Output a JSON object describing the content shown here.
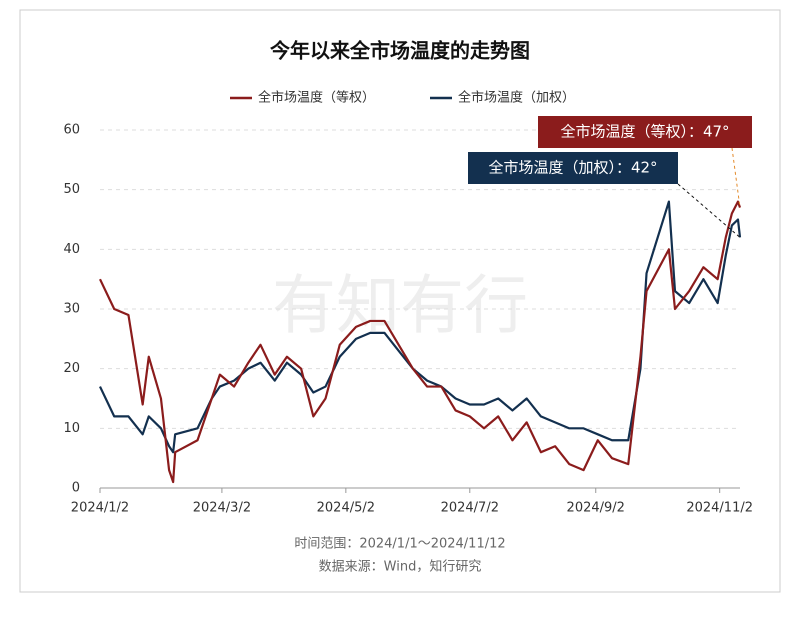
{
  "chart_data": {
    "type": "line",
    "title": "今年以来全市场温度的走势图",
    "x": [
      "2024/1/2",
      "2024/1/9",
      "2024/1/16",
      "2024/1/23",
      "2024/1/26",
      "2024/2/1",
      "2024/2/5",
      "2024/2/7",
      "2024/2/8",
      "2024/2/19",
      "2024/2/26",
      "2024/3/1",
      "2024/3/8",
      "2024/3/15",
      "2024/3/21",
      "2024/3/28",
      "2024/4/3",
      "2024/4/10",
      "2024/4/16",
      "2024/4/22",
      "2024/4/29",
      "2024/5/7",
      "2024/5/14",
      "2024/5/21",
      "2024/5/28",
      "2024/6/4",
      "2024/6/11",
      "2024/6/18",
      "2024/6/25",
      "2024/7/2",
      "2024/7/9",
      "2024/7/16",
      "2024/7/23",
      "2024/7/30",
      "2024/8/6",
      "2024/8/13",
      "2024/8/20",
      "2024/8/27",
      "2024/9/3",
      "2024/9/10",
      "2024/9/18",
      "2024/9/24",
      "2024/9/27",
      "2024/10/8",
      "2024/10/11",
      "2024/10/18",
      "2024/10/25",
      "2024/11/1",
      "2024/11/5",
      "2024/11/8",
      "2024/11/11",
      "2024/11/12"
    ],
    "series": [
      {
        "name": "全市场温度（等权）",
        "color": "#8b1c1c",
        "values": [
          35,
          30,
          29,
          14,
          22,
          15,
          3,
          1,
          6,
          8,
          15,
          19,
          17,
          21,
          24,
          19,
          22,
          20,
          12,
          15,
          24,
          27,
          28,
          28,
          24,
          20,
          17,
          17,
          13,
          12,
          10,
          12,
          8,
          11,
          6,
          7,
          4,
          3,
          8,
          5,
          4,
          22,
          33,
          40,
          30,
          33,
          37,
          35,
          42,
          46,
          48,
          47
        ]
      },
      {
        "name": "全市场温度（加权）",
        "color": "#13304f",
        "values": [
          17,
          12,
          12,
          9,
          12,
          10,
          7,
          6,
          9,
          10,
          15,
          17,
          18,
          20,
          21,
          18,
          21,
          19,
          16,
          17,
          22,
          25,
          26,
          26,
          23,
          20,
          18,
          17,
          15,
          14,
          14,
          15,
          13,
          15,
          12,
          11,
          10,
          10,
          9,
          8,
          8,
          20,
          36,
          48,
          33,
          31,
          35,
          31,
          39,
          44,
          45,
          42
        ]
      }
    ],
    "xlim": [
      "2024/1/2",
      "2024/11/12"
    ],
    "xticks": [
      "2024/1/2",
      "2024/3/2",
      "2024/5/2",
      "2024/7/2",
      "2024/9/2",
      "2024/11/2"
    ],
    "ylim": [
      0,
      60
    ],
    "yticks": [
      0,
      10,
      20,
      30,
      40,
      50,
      60
    ],
    "grid": true,
    "annotations": [
      "全市场温度（等权）：47°",
      "全市场温度（加权）：42°"
    ],
    "watermark": "有知有行",
    "footnotes": [
      "时间范围：2024/1/1～2024/11/12",
      "数据来源：Wind，知行研究"
    ]
  }
}
